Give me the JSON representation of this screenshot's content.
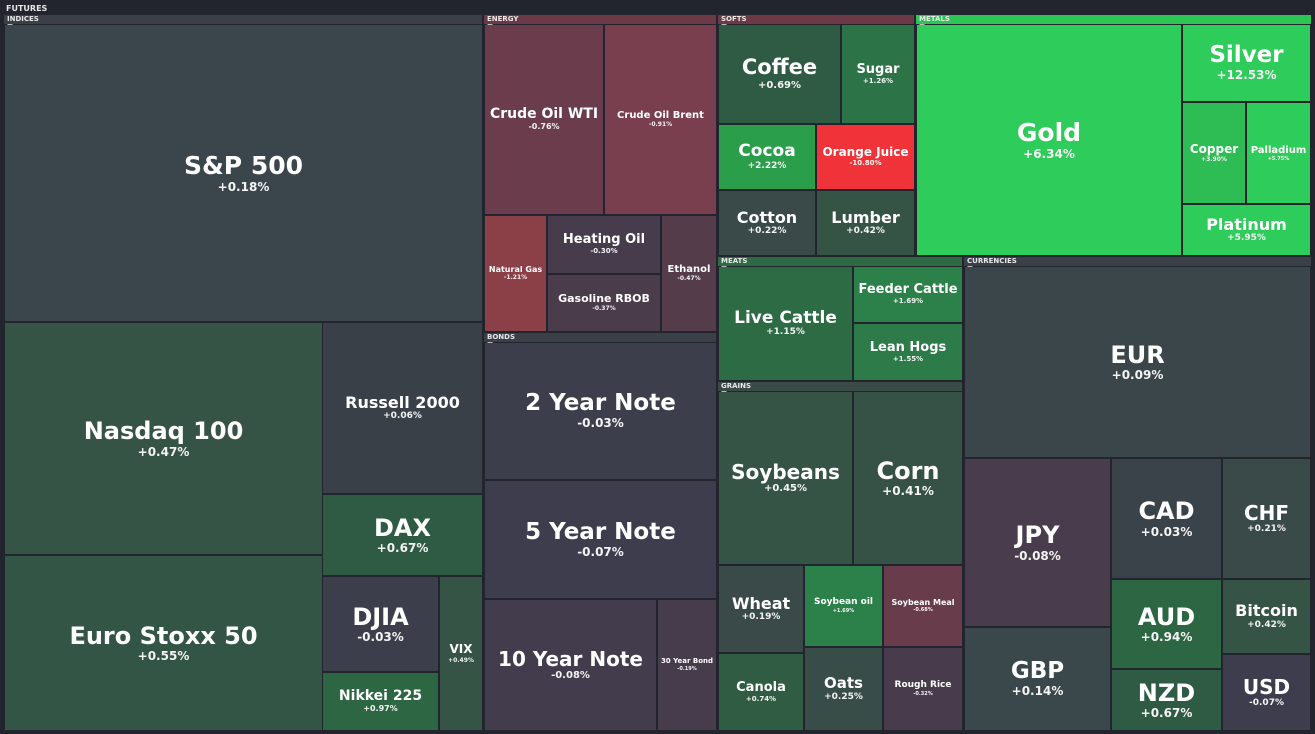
{
  "title": "FUTURES",
  "sectors": [
    {
      "label": "INDICES",
      "color": "#3a3f48",
      "tiles": [
        {
          "name": "S&P 500",
          "change": "+0.18%",
          "color": "#3b464c"
        },
        {
          "name": "Nasdaq 100",
          "change": "+0.47%",
          "color": "#355446"
        },
        {
          "name": "Euro Stoxx 50",
          "change": "+0.55%",
          "color": "#335545"
        },
        {
          "name": "Russell 2000",
          "change": "+0.06%",
          "color": "#3a4048"
        },
        {
          "name": "DAX",
          "change": "+0.67%",
          "color": "#2f5a43"
        },
        {
          "name": "DJIA",
          "change": "-0.03%",
          "color": "#3c3e4c"
        },
        {
          "name": "VIX",
          "change": "+0.49%",
          "color": "#355446"
        },
        {
          "name": "Nikkei 225",
          "change": "+0.97%",
          "color": "#2d6642"
        }
      ]
    },
    {
      "label": "ENERGY",
      "color": "#6b3a46",
      "tiles": [
        {
          "name": "Crude Oil WTI",
          "change": "-0.76%",
          "color": "#6b3c4b"
        },
        {
          "name": "Crude Oil Brent",
          "change": "-0.91%",
          "color": "#7a3f4e"
        },
        {
          "name": "Natural Gas",
          "change": "-1.21%",
          "color": "#8b4048"
        },
        {
          "name": "Heating Oil",
          "change": "-0.30%",
          "color": "#473c4c"
        },
        {
          "name": "Gasoline RBOB",
          "change": "-0.37%",
          "color": "#4b3c4c"
        },
        {
          "name": "Ethanol",
          "change": "-0.47%",
          "color": "#553c4b"
        }
      ]
    },
    {
      "label": "BONDS",
      "color": "#3a3f48",
      "tiles": [
        {
          "name": "2 Year Note",
          "change": "-0.03%",
          "color": "#3c3e4c"
        },
        {
          "name": "5 Year Note",
          "change": "-0.07%",
          "color": "#3e3d4d"
        },
        {
          "name": "10 Year Note",
          "change": "-0.08%",
          "color": "#433c4d"
        },
        {
          "name": "30 Year Bond",
          "change": "-0.19%",
          "color": "#463c4c"
        }
      ]
    },
    {
      "label": "SOFTS",
      "color": "#6b3a46",
      "tiles": [
        {
          "name": "Coffee",
          "change": "+0.69%",
          "color": "#2f5a43"
        },
        {
          "name": "Sugar",
          "change": "+1.26%",
          "color": "#2c7448"
        },
        {
          "name": "Cocoa",
          "change": "+2.22%",
          "color": "#2b9e4c"
        },
        {
          "name": "Orange Juice",
          "change": "-10.80%",
          "color": "#f03338"
        },
        {
          "name": "Cotton",
          "change": "+0.22%",
          "color": "#394a48"
        },
        {
          "name": "Lumber",
          "change": "+0.42%",
          "color": "#355446"
        }
      ]
    },
    {
      "label": "METALS",
      "color": "#2dc655",
      "tiles": [
        {
          "name": "Gold",
          "change": "+6.34%",
          "color": "#2ecc5a"
        },
        {
          "name": "Silver",
          "change": "+12.53%",
          "color": "#2ecc5a"
        },
        {
          "name": "Copper",
          "change": "+3.90%",
          "color": "#2ebd54"
        },
        {
          "name": "Palladium",
          "change": "+5.75%",
          "color": "#2ecc5a"
        },
        {
          "name": "Platinum",
          "change": "+5.95%",
          "color": "#2ecc5a"
        }
      ]
    },
    {
      "label": "MEATS",
      "color": "#2e6a44",
      "tiles": [
        {
          "name": "Live Cattle",
          "change": "+1.15%",
          "color": "#2d6b44"
        },
        {
          "name": "Feeder Cattle",
          "change": "+1.69%",
          "color": "#2c8049"
        },
        {
          "name": "Lean Hogs",
          "change": "+1.55%",
          "color": "#2c7b48"
        }
      ]
    },
    {
      "label": "GRAINS",
      "color": "#3a4a46",
      "tiles": [
        {
          "name": "Soybeans",
          "change": "+0.45%",
          "color": "#355446"
        },
        {
          "name": "Corn",
          "change": "+0.41%",
          "color": "#365246"
        },
        {
          "name": "Wheat",
          "change": "+0.19%",
          "color": "#394a48"
        },
        {
          "name": "Soybean oil",
          "change": "+1.69%",
          "color": "#2c8049"
        },
        {
          "name": "Soybean Meal",
          "change": "-0.68%",
          "color": "#693c4b"
        },
        {
          "name": "Canola",
          "change": "+0.74%",
          "color": "#2f5c43"
        },
        {
          "name": "Oats",
          "change": "+0.25%",
          "color": "#384c48"
        },
        {
          "name": "Rough Rice",
          "change": "-0.32%",
          "color": "#483c4c"
        }
      ]
    },
    {
      "label": "CURRENCIES",
      "color": "#3a3f48",
      "tiles": [
        {
          "name": "EUR",
          "change": "+0.09%",
          "color": "#3a4649"
        },
        {
          "name": "JPY",
          "change": "-0.08%",
          "color": "#483c4d"
        },
        {
          "name": "CAD",
          "change": "+0.03%",
          "color": "#3b434a"
        },
        {
          "name": "CHF",
          "change": "+0.21%",
          "color": "#394a48"
        },
        {
          "name": "AUD",
          "change": "+0.94%",
          "color": "#2d6642"
        },
        {
          "name": "Bitcoin",
          "change": "+0.42%",
          "color": "#355446"
        },
        {
          "name": "GBP",
          "change": "+0.14%",
          "color": "#3b484b"
        },
        {
          "name": "NZD",
          "change": "+0.67%",
          "color": "#2f5a43"
        },
        {
          "name": "USD",
          "change": "-0.07%",
          "color": "#3e3d4d"
        }
      ]
    }
  ]
}
